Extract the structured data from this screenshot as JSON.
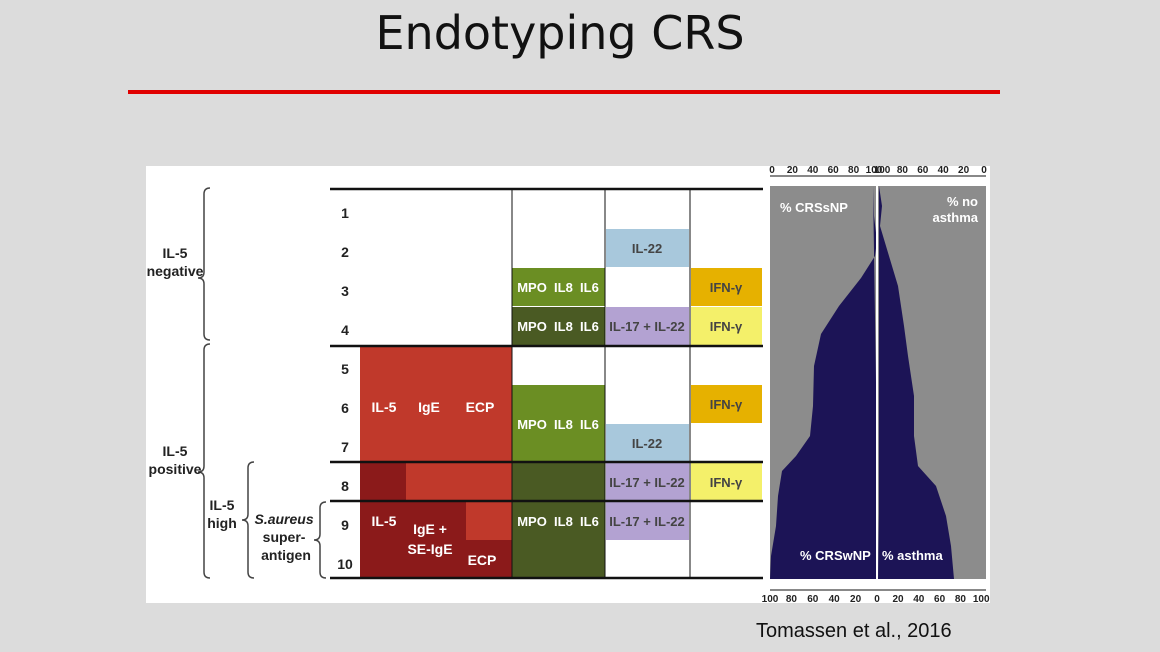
{
  "title": "Endotyping CRS",
  "citation": "Tomassen et al., 2016",
  "groups": {
    "il5_negative": "IL-5 negative",
    "il5_positive": "IL-5 positive",
    "il5_high": "IL-5 high",
    "saureus": "S.aureus",
    "saureus_rest": "super- antigen"
  },
  "rows": [
    "1",
    "2",
    "3",
    "4",
    "5",
    "6",
    "7",
    "8",
    "9",
    "10"
  ],
  "th2_block": {
    "il5": "IL-5",
    "ige": "IgE",
    "ecp": "ECP"
  },
  "th2_block_low": {
    "il5": "IL-5",
    "ige_se": "IgE + SE-IgE",
    "ecp": "ECP"
  },
  "th1_label": "MPO  IL8  IL6",
  "th17": {
    "il22": "IL-22",
    "il17_il22": "IL-17 + IL-22"
  },
  "ifn": "IFN-γ",
  "colors": {
    "th2_red": "#c0392b",
    "th2_dark": "#8b1a1a",
    "olive_light": "#6b8e23",
    "olive_dark": "#4a5a23",
    "blue": "#a8c8dc",
    "lavender": "#b3a2d2",
    "gold": "#e6b100",
    "yellow": "#f4f06a",
    "navy": "#1c1456",
    "gray": "#8c8c8c"
  },
  "profile": {
    "top_axis_left": [
      "0",
      "20",
      "40",
      "60",
      "80",
      "100"
    ],
    "top_axis_right": [
      "100",
      "80",
      "60",
      "40",
      "20",
      "0"
    ],
    "bottom_axis_left": [
      "100",
      "80",
      "60",
      "40",
      "20",
      "0"
    ],
    "bottom_axis_right": [
      "20",
      "40",
      "60",
      "80",
      "100"
    ],
    "label_crssnp": "% CRSsNP",
    "label_no_asthma": "% no asthma",
    "label_crswnp": "% CRSwNP",
    "label_asthma": "% asthma"
  }
}
